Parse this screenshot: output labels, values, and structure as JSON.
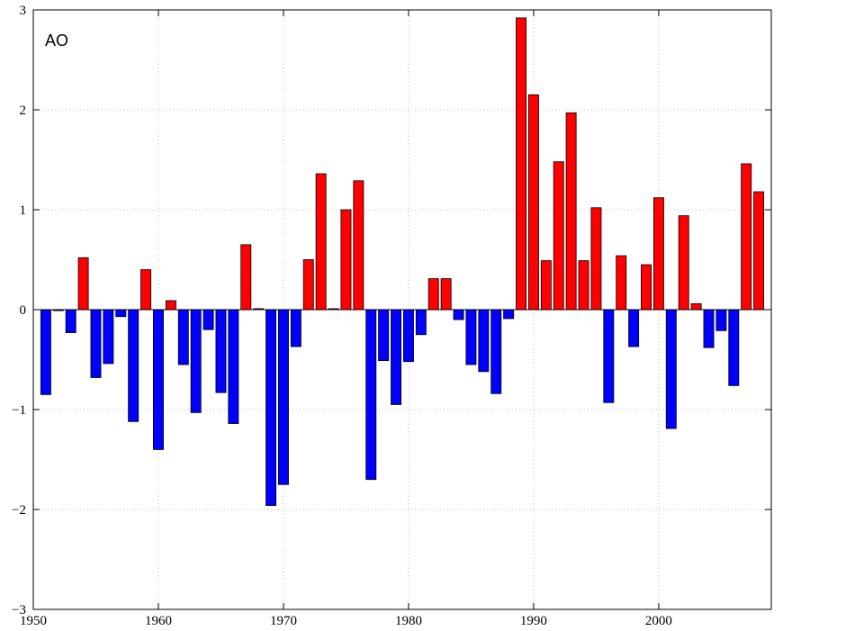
{
  "chart_data": {
    "type": "bar",
    "title": "AO",
    "xlabel": "",
    "ylabel": "",
    "xlim": [
      1950,
      2009
    ],
    "ylim": [
      -3,
      3
    ],
    "xticks": [
      1950,
      1960,
      1970,
      1980,
      1990,
      2000
    ],
    "yticks": [
      -3,
      -2,
      -1,
      0,
      1,
      2,
      3
    ],
    "ytick_labels": [
      "−3",
      "−2",
      "−1",
      "0",
      "1",
      "2",
      "3"
    ],
    "grid": true,
    "colors": {
      "positive": "#ff0000",
      "negative": "#0000ff"
    },
    "x": [
      1951,
      1952,
      1953,
      1954,
      1955,
      1956,
      1957,
      1958,
      1959,
      1960,
      1961,
      1962,
      1963,
      1964,
      1965,
      1966,
      1967,
      1968,
      1969,
      1970,
      1971,
      1972,
      1973,
      1974,
      1975,
      1976,
      1977,
      1978,
      1979,
      1980,
      1981,
      1982,
      1983,
      1984,
      1985,
      1986,
      1987,
      1988,
      1989,
      1990,
      1991,
      1992,
      1993,
      1994,
      1995,
      1996,
      1997,
      1998,
      1999,
      2000,
      2001,
      2002,
      2003,
      2004,
      2005,
      2006,
      2007,
      2008
    ],
    "values": [
      -0.85,
      -0.01,
      -0.23,
      0.52,
      -0.68,
      -0.54,
      -0.07,
      -1.12,
      0.4,
      -1.4,
      0.09,
      -0.55,
      -1.03,
      -0.2,
      -0.83,
      -1.14,
      0.65,
      0.01,
      -1.96,
      -1.75,
      -0.37,
      0.5,
      1.36,
      0.01,
      1.0,
      1.29,
      -1.7,
      -0.51,
      -0.95,
      -0.52,
      -0.25,
      0.31,
      0.31,
      -0.1,
      -0.55,
      -0.62,
      -0.84,
      -0.09,
      2.92,
      2.15,
      0.49,
      1.48,
      1.97,
      0.49,
      1.02,
      -0.93,
      0.54,
      -0.37,
      0.45,
      1.12,
      -1.19,
      0.94,
      0.06,
      -0.38,
      -0.21,
      -0.76,
      1.46,
      1.18
    ]
  }
}
